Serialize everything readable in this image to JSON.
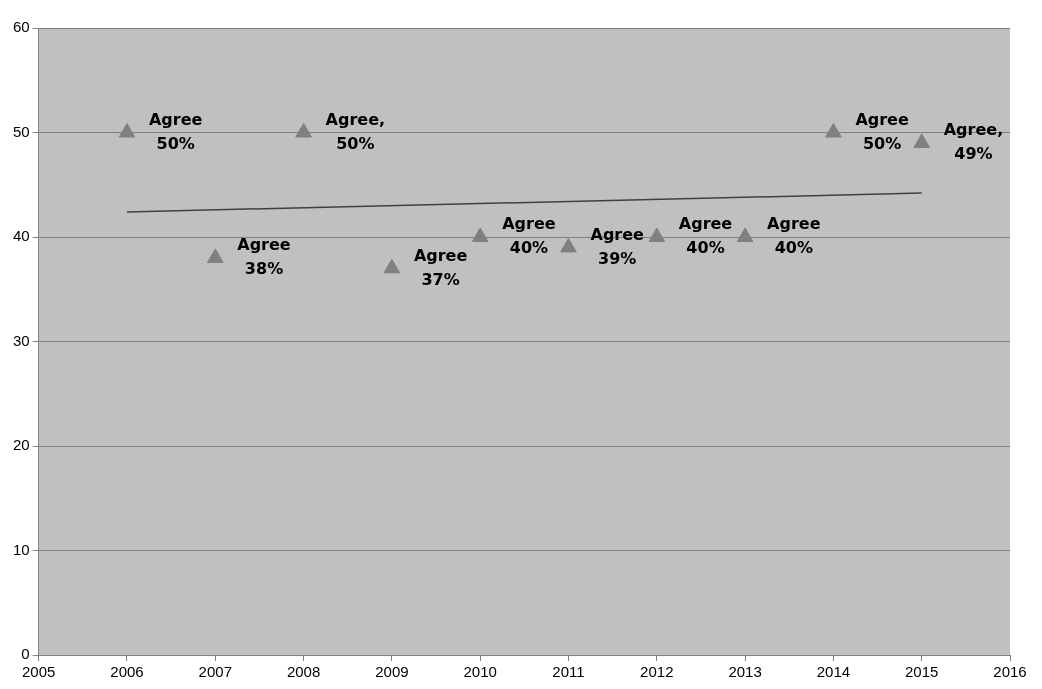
{
  "chart_data": {
    "type": "scatter",
    "xlim": [
      2005,
      2016
    ],
    "xticks": [
      2005,
      2006,
      2007,
      2008,
      2009,
      2010,
      2011,
      2012,
      2013,
      2014,
      2015,
      2016
    ],
    "ylim": [
      0,
      60
    ],
    "yticks": [
      0,
      10,
      20,
      30,
      40,
      50,
      60
    ],
    "grid": "y",
    "legend": false,
    "marker": "triangle",
    "series": [
      {
        "color": "#808080",
        "x": [
          2006,
          2007,
          2008,
          2009,
          2010,
          2011,
          2012,
          2013,
          2014,
          2015
        ],
        "values": [
          50,
          38,
          50,
          37,
          40,
          39,
          40,
          40,
          50,
          49
        ],
        "value_labels": [
          "Agree 50%",
          "Agree 38%",
          "Agree, 50%",
          "Agree 37%",
          "Agree 40%",
          "Agree 39%",
          "Agree 40%",
          "Agree 40%",
          "Agree 50%",
          "Agree, 49%"
        ]
      },
      {
        "type": "line",
        "color": "#404040",
        "marker": "none",
        "line_style": "solid",
        "x": [
          2006,
          2015
        ],
        "values": [
          42.4,
          44.2
        ]
      }
    ]
  }
}
